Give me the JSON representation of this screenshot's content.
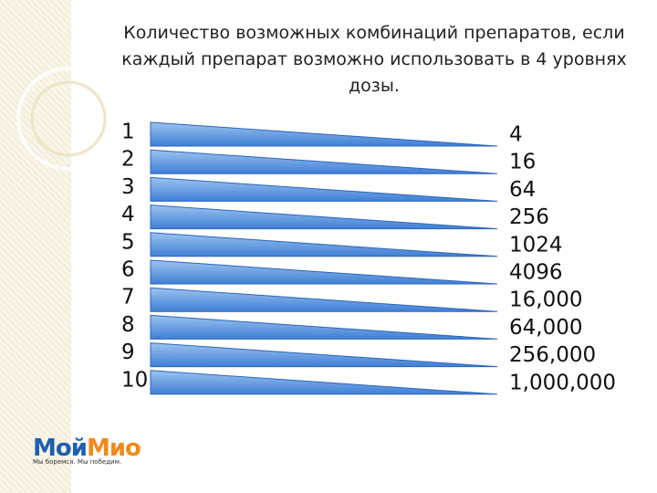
{
  "title": "Количество возможных комбинаций препаратов, если каждый препарат возможно использовать в 4 уровнях дозы.",
  "rows": [
    {
      "left": "1",
      "right": "4"
    },
    {
      "left": "2",
      "right": "16"
    },
    {
      "left": "3",
      "right": "64"
    },
    {
      "left": "4",
      "right": "256"
    },
    {
      "left": "5",
      "right": "1024"
    },
    {
      "left": "6",
      "right": "4096"
    },
    {
      "left": "7",
      "right": "16,000"
    },
    {
      "left": "8",
      "right": "64,000"
    },
    {
      "left": "9",
      "right": "256,000"
    },
    {
      "left": "10",
      "right": "1,000,000"
    }
  ],
  "logo": {
    "part1": "Мой",
    "part2": "Мио",
    "slogan": "Мы боремся. Мы победим."
  }
}
